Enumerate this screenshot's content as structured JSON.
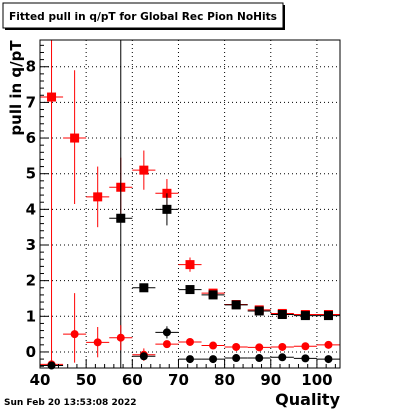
{
  "chart_data": {
    "type": "scatter",
    "title": "Fitted pull in q/pT for Global Rec Pion NoHits",
    "xlabel": "Quality",
    "ylabel": "pull in q/pT",
    "xlim": [
      40,
      105
    ],
    "ylim": [
      -0.45,
      8.75
    ],
    "x_ticks": [
      40,
      50,
      60,
      70,
      80,
      90,
      100
    ],
    "x_tick_labels": [
      "40",
      "50",
      "60",
      "70",
      "80",
      "90",
      "100"
    ],
    "y_ticks": [
      0,
      1,
      2,
      3,
      4,
      5,
      6,
      7,
      8
    ],
    "y_tick_labels": [
      "0",
      "1",
      "2",
      "3",
      "4",
      "5",
      "6",
      "7",
      "8"
    ],
    "grid": true,
    "legend": "none",
    "colors": {
      "red": "#ff0000",
      "black": "#000000"
    },
    "series": [
      {
        "color": "red",
        "marker": "square",
        "points": [
          {
            "x": 42.5,
            "y": 7.15,
            "xerr": 2.5,
            "ylo": -0.45,
            "yhi": 8.75
          },
          {
            "x": 47.5,
            "y": 6.0,
            "xerr": 2.5,
            "ylo": 4.15,
            "yhi": 7.9
          },
          {
            "x": 52.5,
            "y": 4.35,
            "xerr": 2.5,
            "ylo": 3.5,
            "yhi": 5.2
          },
          {
            "x": 57.5,
            "y": 4.62,
            "xerr": 2.5,
            "ylo": 3.75,
            "yhi": 5.45
          },
          {
            "x": 62.5,
            "y": 5.1,
            "xerr": 2.5,
            "ylo": 4.55,
            "yhi": 5.65
          },
          {
            "x": 67.5,
            "y": 4.45,
            "xerr": 2.5,
            "ylo": 4.05,
            "yhi": 4.85
          },
          {
            "x": 72.5,
            "y": 2.45,
            "xerr": 2.5,
            "ylo": 2.25,
            "yhi": 2.65
          },
          {
            "x": 77.5,
            "y": 1.65,
            "xerr": 2.5,
            "ylo": 1.55,
            "yhi": 1.75
          },
          {
            "x": 82.5,
            "y": 1.33,
            "xerr": 2.5,
            "ylo": 1.25,
            "yhi": 1.41
          },
          {
            "x": 87.5,
            "y": 1.18,
            "xerr": 2.5,
            "ylo": 1.12,
            "yhi": 1.24
          },
          {
            "x": 92.5,
            "y": 1.08,
            "xerr": 2.5,
            "ylo": 1.03,
            "yhi": 1.13
          },
          {
            "x": 97.5,
            "y": 1.05,
            "xerr": 2.5,
            "ylo": 1.01,
            "yhi": 1.09
          },
          {
            "x": 102.5,
            "y": 1.05,
            "xerr": 2.5,
            "ylo": 1.01,
            "yhi": 1.09
          }
        ]
      },
      {
        "color": "black",
        "marker": "square",
        "points": [
          {
            "x": 57.5,
            "y": 3.75,
            "xerr": 2.5,
            "ylo": -0.45,
            "yhi": 8.75
          },
          {
            "x": 62.5,
            "y": 1.8,
            "xerr": 2.5,
            "ylo": 1.75,
            "yhi": 1.85
          },
          {
            "x": 67.5,
            "y": 4.0,
            "xerr": 2.5,
            "ylo": 3.55,
            "yhi": 4.45
          },
          {
            "x": 72.5,
            "y": 1.75,
            "xerr": 2.5,
            "ylo": 1.68,
            "yhi": 1.82
          },
          {
            "x": 77.5,
            "y": 1.6,
            "xerr": 2.5,
            "ylo": 1.55,
            "yhi": 1.65
          },
          {
            "x": 82.5,
            "y": 1.32,
            "xerr": 2.5,
            "ylo": 1.28,
            "yhi": 1.36
          },
          {
            "x": 87.5,
            "y": 1.15,
            "xerr": 2.5,
            "ylo": 1.12,
            "yhi": 1.18
          },
          {
            "x": 92.5,
            "y": 1.05,
            "xerr": 2.5,
            "ylo": 1.02,
            "yhi": 1.08
          },
          {
            "x": 97.5,
            "y": 1.02,
            "xerr": 2.5,
            "ylo": 0.99,
            "yhi": 1.05
          },
          {
            "x": 102.5,
            "y": 1.02,
            "xerr": 2.5,
            "ylo": 0.99,
            "yhi": 1.05
          }
        ]
      },
      {
        "color": "red",
        "marker": "circle",
        "points": [
          {
            "x": 42.5,
            "y": -0.35,
            "xerr": 2.5,
            "ylo": -0.4,
            "yhi": -0.3
          },
          {
            "x": 47.5,
            "y": 0.5,
            "xerr": 2.5,
            "ylo": -0.3,
            "yhi": 1.65
          },
          {
            "x": 52.5,
            "y": 0.27,
            "xerr": 2.5,
            "ylo": -0.15,
            "yhi": 0.7
          },
          {
            "x": 57.5,
            "y": 0.4,
            "xerr": 2.5,
            "ylo": 0.05,
            "yhi": 0.75
          },
          {
            "x": 62.5,
            "y": -0.08,
            "xerr": 2.5,
            "ylo": -0.25,
            "yhi": 0.1
          },
          {
            "x": 67.5,
            "y": 0.22,
            "xerr": 2.5,
            "ylo": 0.12,
            "yhi": 0.32
          },
          {
            "x": 72.5,
            "y": 0.28,
            "xerr": 2.5,
            "ylo": 0.22,
            "yhi": 0.34
          },
          {
            "x": 77.5,
            "y": 0.18,
            "xerr": 2.5,
            "ylo": 0.14,
            "yhi": 0.22
          },
          {
            "x": 82.5,
            "y": 0.14,
            "xerr": 2.5,
            "ylo": 0.11,
            "yhi": 0.17
          },
          {
            "x": 87.5,
            "y": 0.13,
            "xerr": 2.5,
            "ylo": 0.1,
            "yhi": 0.16
          },
          {
            "x": 92.5,
            "y": 0.14,
            "xerr": 2.5,
            "ylo": 0.11,
            "yhi": 0.17
          },
          {
            "x": 97.5,
            "y": 0.16,
            "xerr": 2.5,
            "ylo": 0.13,
            "yhi": 0.19
          },
          {
            "x": 102.5,
            "y": 0.2,
            "xerr": 2.5,
            "ylo": 0.17,
            "yhi": 0.23
          }
        ]
      },
      {
        "color": "black",
        "marker": "circle",
        "points": [
          {
            "x": 42.5,
            "y": -0.38,
            "xerr": 2.5,
            "ylo": -0.42,
            "yhi": -0.34
          },
          {
            "x": 62.5,
            "y": -0.12,
            "xerr": 2.5,
            "ylo": -0.18,
            "yhi": -0.06
          },
          {
            "x": 67.5,
            "y": 0.55,
            "xerr": 2.5,
            "ylo": 0.38,
            "yhi": 0.72
          },
          {
            "x": 72.5,
            "y": -0.2,
            "xerr": 2.5,
            "ylo": -0.24,
            "yhi": -0.16
          },
          {
            "x": 77.5,
            "y": -0.2,
            "xerr": 2.5,
            "ylo": -0.24,
            "yhi": -0.16
          },
          {
            "x": 82.5,
            "y": -0.17,
            "xerr": 2.5,
            "ylo": -0.21,
            "yhi": -0.13
          },
          {
            "x": 87.5,
            "y": -0.17,
            "xerr": 2.5,
            "ylo": -0.21,
            "yhi": -0.13
          },
          {
            "x": 92.5,
            "y": -0.15,
            "xerr": 2.5,
            "ylo": -0.19,
            "yhi": -0.11
          },
          {
            "x": 97.5,
            "y": -0.18,
            "xerr": 2.5,
            "ylo": -0.22,
            "yhi": -0.14
          },
          {
            "x": 102.5,
            "y": -0.2,
            "xerr": 2.5,
            "ylo": -0.24,
            "yhi": -0.16
          }
        ]
      }
    ]
  },
  "footer": {
    "timestamp": "Sun Feb 20 13:53:08 2022"
  }
}
